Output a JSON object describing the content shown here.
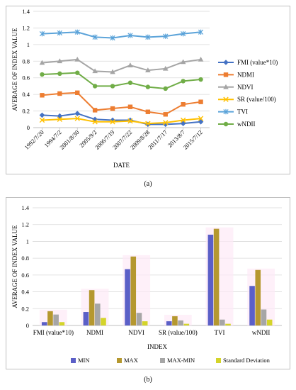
{
  "chart_data": [
    {
      "type": "line",
      "caption": "(a)",
      "xlabel": "DATE",
      "ylabel": "AVERAGE OF INDEX VALUE",
      "ylim": [
        0,
        1.4
      ],
      "yticks": [
        "0",
        "0.2",
        "0.4",
        "0.6",
        "0.8",
        "1",
        "1.2",
        "1.4"
      ],
      "grid": true,
      "legend": "right",
      "categories": [
        "1992/7/20",
        "1994/7/2",
        "2001/8/30",
        "2005/9/2",
        "2006/7/19",
        "2007/7/22",
        "2009/8/28",
        "2011/7/17",
        "2013/8/7",
        "2015/7/12"
      ],
      "series": [
        {
          "name": "FMI (value*10)",
          "color": "#4472c4",
          "marker": "diamond",
          "values": [
            0.15,
            0.14,
            0.17,
            0.1,
            0.09,
            0.09,
            0.04,
            0.04,
            0.05,
            0.07
          ]
        },
        {
          "name": "NDMI",
          "color": "#ed7d31",
          "marker": "square",
          "values": [
            0.39,
            0.41,
            0.42,
            0.21,
            0.23,
            0.25,
            0.19,
            0.16,
            0.28,
            0.31
          ]
        },
        {
          "name": "NDVI",
          "color": "#a5a5a5",
          "marker": "triangle",
          "values": [
            0.78,
            0.8,
            0.82,
            0.68,
            0.67,
            0.75,
            0.69,
            0.71,
            0.79,
            0.82
          ]
        },
        {
          "name": "SR (value/100)",
          "color": "#ffc000",
          "marker": "x",
          "values": [
            0.09,
            0.1,
            0.11,
            0.07,
            0.07,
            0.08,
            0.05,
            0.06,
            0.09,
            0.11
          ]
        },
        {
          "name": "TVI",
          "color": "#5ba3d9",
          "marker": "star",
          "values": [
            1.13,
            1.14,
            1.15,
            1.09,
            1.08,
            1.11,
            1.09,
            1.1,
            1.13,
            1.15
          ]
        },
        {
          "name": "wNDII",
          "color": "#70ad47",
          "marker": "circle",
          "values": [
            0.64,
            0.65,
            0.66,
            0.5,
            0.5,
            0.54,
            0.49,
            0.47,
            0.56,
            0.58
          ]
        }
      ]
    },
    {
      "type": "bar",
      "caption": "(b)",
      "xlabel": "INDEX",
      "ylabel": "AVERAGE OF INDEX VALUE",
      "ylim": [
        0,
        1.4
      ],
      "yticks": [
        "0",
        "0.2",
        "0.4",
        "0.6",
        "0.8",
        "1",
        "1.2",
        "1.4"
      ],
      "grid": true,
      "legend": "bottom",
      "categories": [
        "FMI (value*10)",
        "NDMI",
        "NDVI",
        "SR (value/100)",
        "TVI",
        "wNDII"
      ],
      "series": [
        {
          "name": "MIN",
          "color": "#5b5fc7",
          "values": [
            0.04,
            0.16,
            0.67,
            0.05,
            1.08,
            0.47
          ]
        },
        {
          "name": "MAX",
          "color": "#b5982f",
          "values": [
            0.17,
            0.42,
            0.82,
            0.11,
            1.15,
            0.66
          ]
        },
        {
          "name": "MAX-MIN",
          "color": "#a6a6a6",
          "values": [
            0.13,
            0.26,
            0.15,
            0.06,
            0.07,
            0.19
          ]
        },
        {
          "name": "Standard Deviation",
          "color": "#d4d42a",
          "values": [
            0.04,
            0.09,
            0.05,
            0.02,
            0.02,
            0.07
          ]
        }
      ]
    }
  ]
}
